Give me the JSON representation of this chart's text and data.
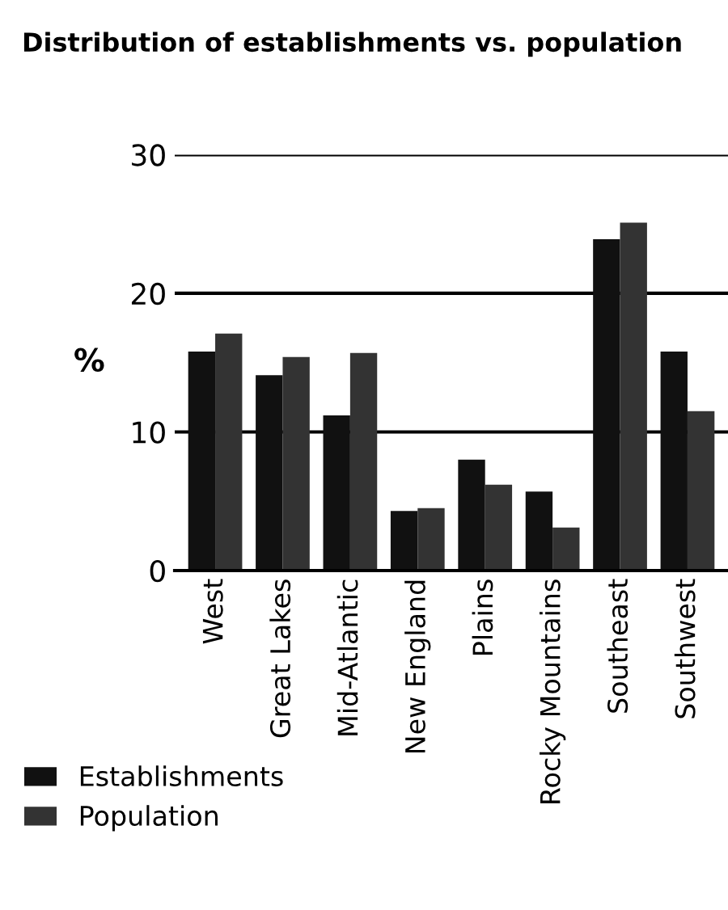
{
  "chart_data": {
    "type": "bar",
    "title": "Distribution of establishments vs. population",
    "ylabel": "%",
    "categories": [
      "West",
      "Great Lakes",
      "Mid-Atlantic",
      "New England",
      "Plains",
      "Rocky Mountains",
      "Southeast",
      "Southwest"
    ],
    "series": [
      {
        "name": "Establishments",
        "color": "#111111",
        "values": [
          15.8,
          14.1,
          11.2,
          4.3,
          8.0,
          5.7,
          23.9,
          15.8
        ]
      },
      {
        "name": "Population",
        "color": "#333333",
        "values": [
          17.1,
          15.4,
          15.7,
          4.5,
          6.2,
          3.1,
          25.1,
          11.5
        ]
      }
    ],
    "ylim": [
      0,
      30
    ],
    "yticks": [
      0,
      10,
      20,
      30
    ],
    "grid": "y",
    "legend": "bottom left"
  }
}
